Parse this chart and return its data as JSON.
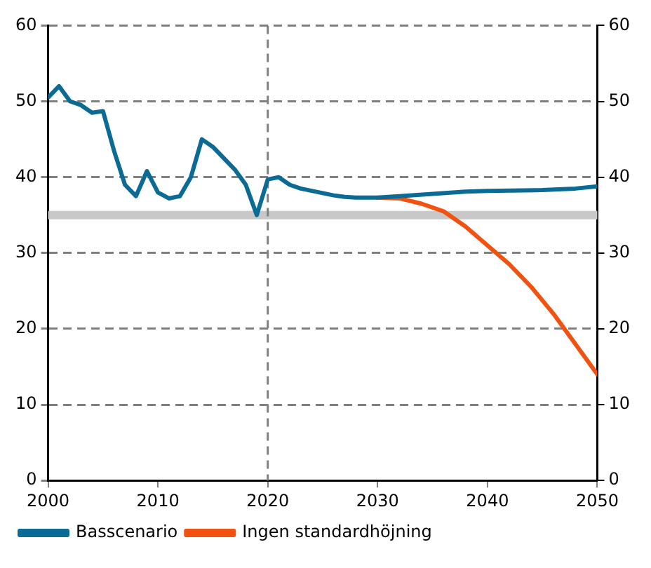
{
  "chart_data": {
    "type": "line",
    "xlim": [
      2000,
      2050
    ],
    "xticks": [
      2000,
      2010,
      2020,
      2030,
      2040,
      2050
    ],
    "ylim": [
      0,
      60
    ],
    "yticks": [
      0,
      10,
      20,
      30,
      40,
      50,
      60
    ],
    "y2lim": [
      0,
      60
    ],
    "y2ticks": [
      0,
      10,
      20,
      30,
      40,
      50,
      60
    ],
    "grid": "y",
    "legend": "bottom",
    "marker": "none",
    "line_style": "solid",
    "ref_lines": [
      {
        "axis": "y",
        "value": 35,
        "color": "#c8c8c8",
        "line_style": "solid"
      },
      {
        "axis": "x",
        "value": 2020,
        "color": "#808080",
        "line_style": "dashed"
      }
    ],
    "series": [
      {
        "name": "Basscenario",
        "color": "#0b6b94",
        "x": [
          2000,
          2001,
          2002,
          2003,
          2004,
          2005,
          2006,
          2007,
          2008,
          2009,
          2010,
          2011,
          2012,
          2013,
          2014,
          2015,
          2016,
          2017,
          2018,
          2019,
          2020,
          2021,
          2022,
          2023,
          2024,
          2025,
          2026,
          2027,
          2028,
          2030,
          2032,
          2035,
          2038,
          2040,
          2045,
          2048,
          2050
        ],
        "values": [
          50.5,
          52,
          50,
          49.5,
          48.5,
          48.7,
          43.5,
          39,
          37.5,
          40.8,
          38,
          37.2,
          37.5,
          40,
          45,
          44,
          42.5,
          41,
          39,
          35,
          39.7,
          40,
          39,
          38.5,
          38.2,
          37.9,
          37.6,
          37.4,
          37.3,
          37.3,
          37.5,
          37.8,
          38.1,
          38.2,
          38.3,
          38.5,
          38.8
        ]
      },
      {
        "name": "Ingen standardhöjning",
        "color": "#f2520f",
        "x": [
          2030,
          2032,
          2034,
          2036,
          2038,
          2040,
          2042,
          2044,
          2046,
          2048,
          2050
        ],
        "values": [
          37.3,
          37.2,
          36.5,
          35.5,
          33.5,
          31,
          28.5,
          25.5,
          22,
          18,
          14
        ]
      }
    ]
  }
}
